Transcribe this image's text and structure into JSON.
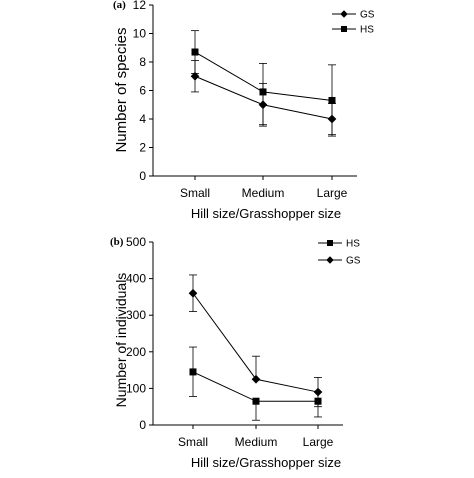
{
  "chart_data": [
    {
      "type": "line",
      "panel_label": "(a)",
      "categories": [
        "Small",
        "Medium",
        "Large"
      ],
      "xlabel": "Hill size/Grasshopper size",
      "ylabel": "Number of species",
      "ylim": [
        0,
        12
      ],
      "yticks": [
        "0",
        "2",
        "4",
        "6",
        "8",
        "10",
        "12"
      ],
      "legend_position": "top-right",
      "legend_order": [
        "GS",
        "HS"
      ],
      "series": [
        {
          "name": "GS",
          "marker": "diamond",
          "values": [
            7.0,
            5.0,
            4.0
          ],
          "err_low": [
            1.1,
            1.5,
            1.1
          ],
          "err_high": [
            1.1,
            1.5,
            1.1
          ]
        },
        {
          "name": "HS",
          "marker": "square",
          "values": [
            8.7,
            5.9,
            5.3
          ],
          "err_low": [
            1.5,
            2.3,
            2.5
          ],
          "err_high": [
            1.5,
            2.0,
            2.5
          ]
        }
      ]
    },
    {
      "type": "line",
      "panel_label": "(b)",
      "categories": [
        "Small",
        "Medium",
        "Large"
      ],
      "xlabel": "Hill size/Grasshopper size",
      "ylabel": "Number of individuals",
      "ylim": [
        0,
        500
      ],
      "yticks": [
        "0",
        "100",
        "200",
        "300",
        "400",
        "500"
      ],
      "legend_position": "top-right",
      "legend_order": [
        "HS",
        "GS"
      ],
      "series": [
        {
          "name": "HS",
          "marker": "square",
          "values": [
            145,
            65,
            65
          ],
          "err_low": [
            67,
            52,
            43
          ],
          "err_high": [
            68,
            0,
            0
          ]
        },
        {
          "name": "GS",
          "marker": "diamond",
          "values": [
            360,
            125,
            90
          ],
          "err_low": [
            50,
            0,
            40
          ],
          "err_high": [
            50,
            63,
            40
          ]
        }
      ]
    }
  ]
}
